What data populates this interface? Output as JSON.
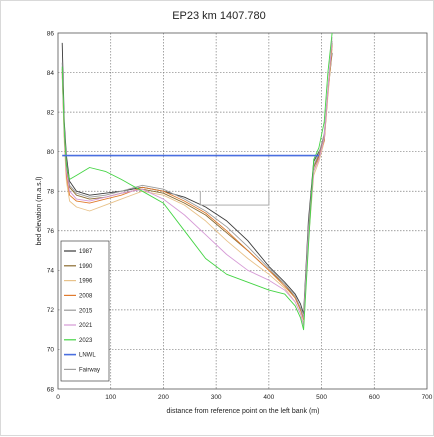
{
  "chart_data": {
    "type": "line",
    "title": "EP23 km 1407.780",
    "xlabel": "distance from reference point on the left bank (m)",
    "ylabel": "bed elevation (m.a.s.l)",
    "xlim": [
      0,
      700
    ],
    "ylim": [
      68,
      86
    ],
    "xticks": [
      "0",
      "100",
      "200",
      "300",
      "400",
      "500",
      "600",
      "700"
    ],
    "yticks": [
      "68",
      "70",
      "72",
      "74",
      "76",
      "78",
      "80",
      "82",
      "84",
      "86"
    ],
    "grid": true,
    "legend": "bottom-left",
    "series": [
      {
        "name": "1987",
        "color": "#3a3a3a",
        "x": [
          8,
          12,
          16,
          22,
          35,
          60,
          90,
          120,
          160,
          200,
          240,
          280,
          320,
          360,
          400,
          430,
          450,
          460,
          466,
          475,
          485,
          495,
          505,
          512,
          520
        ],
        "y": [
          85.5,
          81.5,
          79.8,
          78.5,
          78.0,
          77.8,
          77.9,
          78.0,
          78.2,
          78.0,
          77.7,
          77.2,
          76.5,
          75.5,
          74.2,
          73.4,
          72.8,
          72.3,
          71.8,
          76.5,
          79.5,
          80.0,
          80.5,
          83.0,
          85.0
        ]
      },
      {
        "name": "1990",
        "color": "#8b6b2e",
        "x": [
          8,
          12,
          16,
          22,
          35,
          60,
          90,
          120,
          160,
          200,
          240,
          280,
          320,
          360,
          400,
          430,
          450,
          460,
          466,
          475,
          485,
          495,
          505,
          512,
          520
        ],
        "y": [
          84.2,
          81.0,
          79.2,
          78.2,
          77.8,
          77.6,
          77.7,
          77.9,
          78.1,
          77.9,
          77.4,
          76.8,
          75.9,
          75.0,
          74.0,
          73.3,
          72.6,
          72.0,
          71.6,
          76.0,
          79.2,
          79.8,
          80.8,
          83.0,
          85.5
        ]
      },
      {
        "name": "1996",
        "color": "#e8c28a",
        "x": [
          8,
          12,
          16,
          22,
          35,
          60,
          90,
          120,
          160,
          200,
          240,
          280,
          320,
          360,
          400,
          430,
          450,
          460,
          466,
          475,
          485,
          495,
          505,
          512,
          520
        ],
        "y": [
          83.8,
          80.5,
          78.5,
          77.5,
          77.2,
          77.0,
          77.3,
          77.6,
          78.0,
          77.8,
          77.3,
          76.5,
          75.5,
          74.6,
          73.8,
          73.1,
          72.4,
          71.8,
          71.3,
          75.5,
          78.8,
          79.5,
          80.5,
          82.8,
          85.2
        ]
      },
      {
        "name": "2008",
        "color": "#e07b2e",
        "x": [
          8,
          12,
          16,
          22,
          35,
          60,
          90,
          120,
          160,
          200,
          240,
          280,
          320,
          360,
          400,
          430,
          450,
          460,
          466,
          475,
          485,
          495,
          505,
          512,
          520
        ],
        "y": [
          84.0,
          80.8,
          78.8,
          77.8,
          77.5,
          77.4,
          77.6,
          77.8,
          78.2,
          78.0,
          77.5,
          76.9,
          76.0,
          75.0,
          74.0,
          73.2,
          72.6,
          72.0,
          71.5,
          75.8,
          79.0,
          79.7,
          80.6,
          83.0,
          85.4
        ]
      },
      {
        "name": "2015",
        "color": "#9a9a9a",
        "x": [
          8,
          12,
          16,
          22,
          35,
          60,
          90,
          120,
          160,
          200,
          240,
          280,
          320,
          360,
          400,
          430,
          450,
          460,
          466,
          475,
          485,
          495,
          505,
          512,
          520
        ],
        "y": [
          84.5,
          81.2,
          79.5,
          78.3,
          77.9,
          77.7,
          77.8,
          78.0,
          78.3,
          78.1,
          77.6,
          77.0,
          76.2,
          75.2,
          74.1,
          73.3,
          72.7,
          72.1,
          71.6,
          76.2,
          79.3,
          79.9,
          80.9,
          83.2,
          85.6
        ]
      },
      {
        "name": "2021",
        "color": "#d69ad6",
        "x": [
          8,
          12,
          16,
          22,
          35,
          60,
          90,
          120,
          160,
          200,
          240,
          280,
          320,
          360,
          400,
          430,
          450,
          460,
          466,
          475,
          485,
          495,
          505,
          512,
          520
        ],
        "y": [
          84.0,
          80.8,
          79.0,
          78.0,
          77.6,
          77.5,
          77.7,
          77.9,
          78.1,
          77.6,
          76.8,
          75.8,
          74.8,
          74.0,
          73.5,
          73.0,
          72.4,
          71.8,
          71.2,
          75.6,
          79.0,
          79.6,
          80.7,
          83.1,
          85.8
        ]
      },
      {
        "name": "2023",
        "color": "#44d444",
        "x": [
          8,
          12,
          16,
          22,
          35,
          60,
          90,
          120,
          160,
          200,
          240,
          280,
          320,
          360,
          400,
          430,
          450,
          460,
          466,
          475,
          485,
          495,
          505,
          512,
          520
        ],
        "y": [
          84.3,
          81.0,
          79.3,
          78.6,
          78.8,
          79.2,
          79.0,
          78.6,
          78.0,
          77.4,
          76.0,
          74.6,
          73.8,
          73.4,
          73.0,
          72.8,
          72.2,
          71.6,
          71.0,
          75.2,
          79.6,
          80.2,
          81.5,
          84.0,
          86.0
        ]
      },
      {
        "name": "LNWL",
        "color": "#4a6fe0",
        "x": [
          8,
          495
        ],
        "y": [
          79.8,
          79.8
        ]
      },
      {
        "name": "Fairway",
        "color": "#a0a0a0",
        "x": [
          270,
          270,
          400,
          400
        ],
        "y": [
          78.0,
          77.3,
          77.3,
          78.0
        ]
      }
    ]
  }
}
